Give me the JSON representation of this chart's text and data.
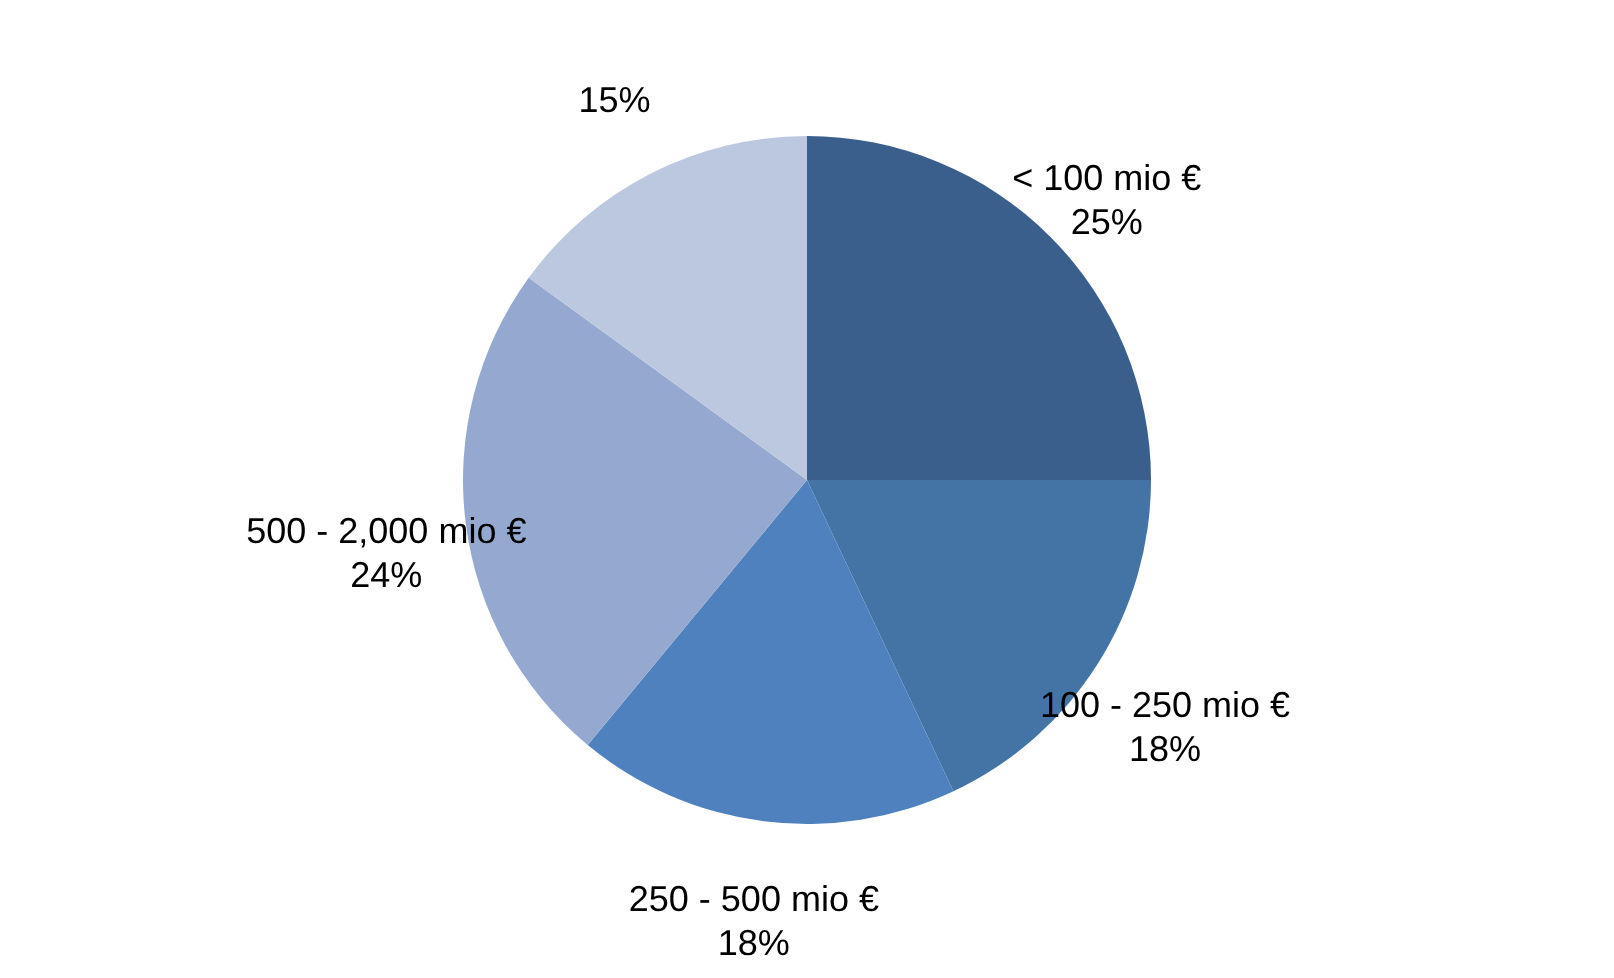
{
  "chart_data": {
    "type": "pie",
    "categories": [
      "< 100 mio €",
      "100 - 250 mio €",
      "250 - 500 mio €",
      "500 - 2,000 mio €",
      null
    ],
    "values": [
      25,
      18,
      18,
      24,
      15
    ],
    "colors": [
      "#3b5f8d",
      "#4473a6",
      "#4e81bd",
      "#95a9d0",
      "#bcc8e0"
    ],
    "value_labels": [
      "25%",
      "18%",
      "18%",
      "24%",
      "15%"
    ]
  }
}
